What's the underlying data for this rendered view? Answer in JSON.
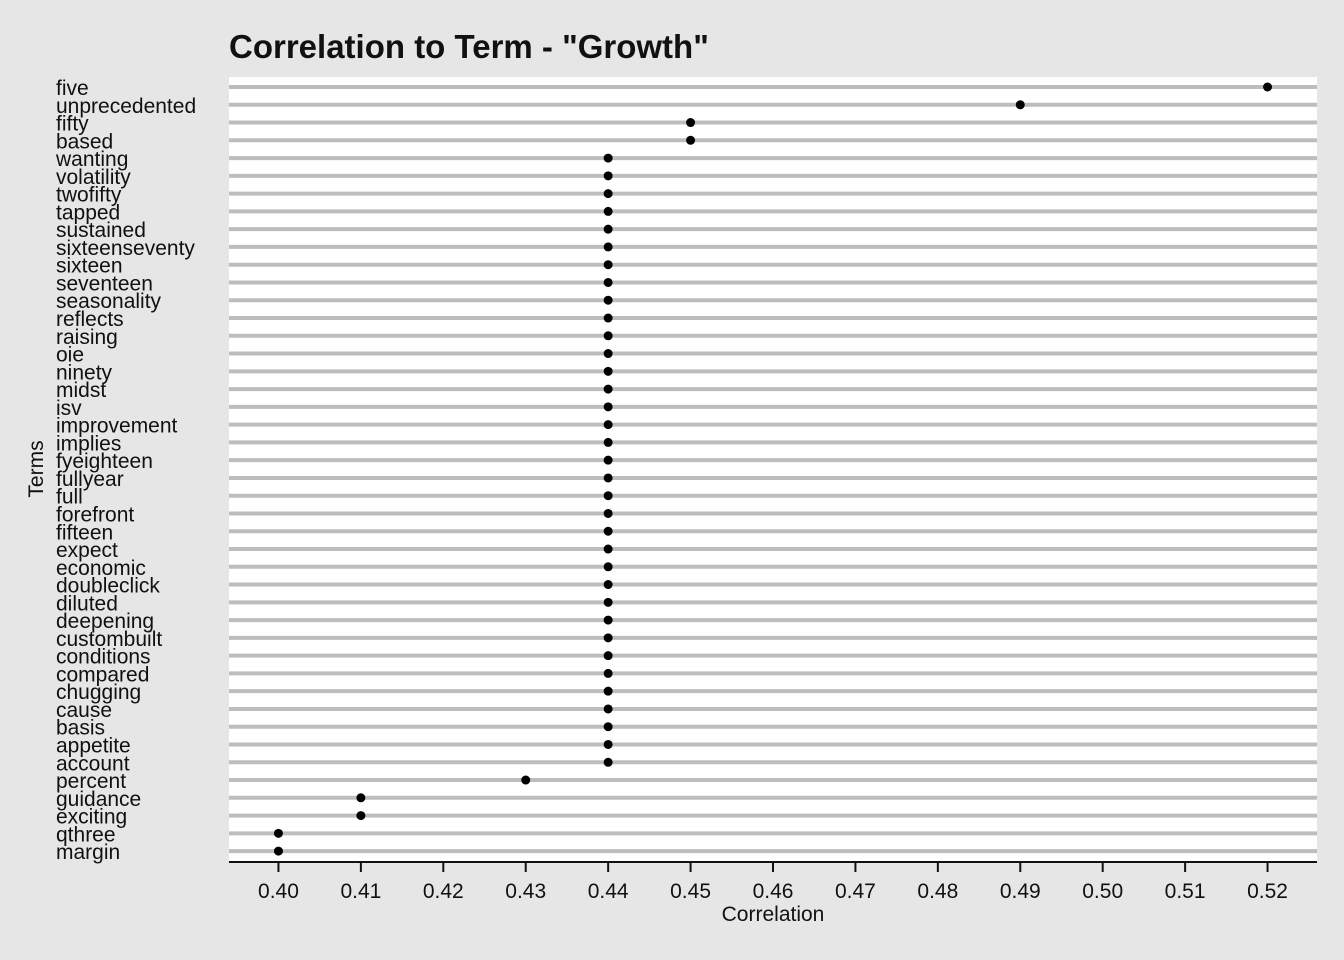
{
  "chart_data": {
    "type": "scatter",
    "title": "Correlation to Term - \"Growth\"",
    "xlabel": "Correlation",
    "ylabel": "Terms",
    "xlim": [
      0.394,
      0.526
    ],
    "xticks": [
      "0.40",
      "0.41",
      "0.42",
      "0.43",
      "0.44",
      "0.45",
      "0.46",
      "0.47",
      "0.48",
      "0.49",
      "0.50",
      "0.51",
      "0.52"
    ],
    "grid": "horizontal",
    "colors": {
      "panel": "#ffffff",
      "background": "#e6e6e6",
      "grid": "#bdbdbd",
      "point": "#000000",
      "axis": "#111111"
    },
    "points": [
      {
        "term": "five",
        "value": 0.52
      },
      {
        "term": "unprecedented",
        "value": 0.49
      },
      {
        "term": "fifty",
        "value": 0.45
      },
      {
        "term": "based",
        "value": 0.45
      },
      {
        "term": "wanting",
        "value": 0.44
      },
      {
        "term": "volatility",
        "value": 0.44
      },
      {
        "term": "twofifty",
        "value": 0.44
      },
      {
        "term": "tapped",
        "value": 0.44
      },
      {
        "term": "sustained",
        "value": 0.44
      },
      {
        "term": "sixteenseventy",
        "value": 0.44
      },
      {
        "term": "sixteen",
        "value": 0.44
      },
      {
        "term": "seventeen",
        "value": 0.44
      },
      {
        "term": "seasonality",
        "value": 0.44
      },
      {
        "term": "reflects",
        "value": 0.44
      },
      {
        "term": "raising",
        "value": 0.44
      },
      {
        "term": "oie",
        "value": 0.44
      },
      {
        "term": "ninety",
        "value": 0.44
      },
      {
        "term": "midst",
        "value": 0.44
      },
      {
        "term": "isv",
        "value": 0.44
      },
      {
        "term": "improvement",
        "value": 0.44
      },
      {
        "term": "implies",
        "value": 0.44
      },
      {
        "term": "fyeighteen",
        "value": 0.44
      },
      {
        "term": "fullyear",
        "value": 0.44
      },
      {
        "term": "full",
        "value": 0.44
      },
      {
        "term": "forefront",
        "value": 0.44
      },
      {
        "term": "fifteen",
        "value": 0.44
      },
      {
        "term": "expect",
        "value": 0.44
      },
      {
        "term": "economic",
        "value": 0.44
      },
      {
        "term": "doubleclick",
        "value": 0.44
      },
      {
        "term": "diluted",
        "value": 0.44
      },
      {
        "term": "deepening",
        "value": 0.44
      },
      {
        "term": "custombuilt",
        "value": 0.44
      },
      {
        "term": "conditions",
        "value": 0.44
      },
      {
        "term": "compared",
        "value": 0.44
      },
      {
        "term": "chugging",
        "value": 0.44
      },
      {
        "term": "cause",
        "value": 0.44
      },
      {
        "term": "basis",
        "value": 0.44
      },
      {
        "term": "appetite",
        "value": 0.44
      },
      {
        "term": "account",
        "value": 0.44
      },
      {
        "term": "percent",
        "value": 0.43
      },
      {
        "term": "guidance",
        "value": 0.41
      },
      {
        "term": "exciting",
        "value": 0.41
      },
      {
        "term": "qthree",
        "value": 0.4
      },
      {
        "term": "margin",
        "value": 0.4
      }
    ]
  }
}
